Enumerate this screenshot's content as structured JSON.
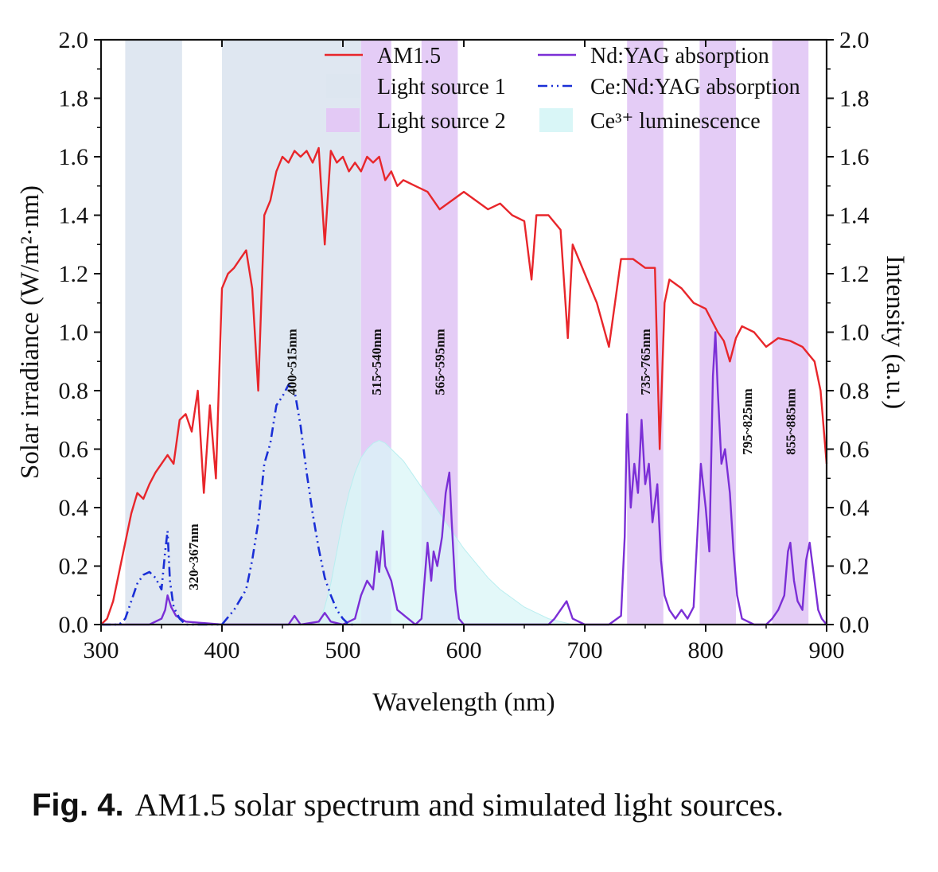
{
  "chart_data": {
    "type": "line",
    "title": "",
    "xlabel": "Wavelength (nm)",
    "ylabel": "Solar irradiance (W/m²·nm)",
    "y2label": "Intensity (a.u.)",
    "xlim": [
      300,
      900
    ],
    "ylim": [
      0,
      2.0
    ],
    "y2lim": [
      0,
      2.0
    ],
    "xticks": [
      "300",
      "400",
      "500",
      "600",
      "700",
      "800",
      "900"
    ],
    "yticks": [
      "0.0",
      "0.2",
      "0.4",
      "0.6",
      "0.8",
      "1.0",
      "1.2",
      "1.4",
      "1.6",
      "1.8",
      "2.0"
    ],
    "grid": false,
    "legend_position": "top",
    "legend": [
      {
        "label": "AM1.5",
        "kind": "line",
        "color": "#e8262b"
      },
      {
        "label": "Nd:YAG absorption",
        "kind": "line",
        "color": "#7b2fd6"
      },
      {
        "label": "Light source 1",
        "kind": "patch",
        "color": "#dde6f0"
      },
      {
        "label": "Ce:Nd:YAG absorption",
        "kind": "dashdot",
        "color": "#1a2fd6"
      },
      {
        "label": "Light source 2",
        "kind": "patch",
        "color": "#e3c9f5"
      },
      {
        "label": "Ce³⁺ luminescence",
        "kind": "patch",
        "color": "#d9f6f7"
      }
    ],
    "bands": [
      {
        "range": [
          320,
          367
        ],
        "label": "320~367nm",
        "source": "Light source 1"
      },
      {
        "range": [
          400,
          515
        ],
        "label": "400~515nm",
        "source": "Light source 1"
      },
      {
        "range": [
          515,
          540
        ],
        "label": "515~540nm",
        "source": "Light source 2"
      },
      {
        "range": [
          565,
          595
        ],
        "label": "565~595nm",
        "source": "Light source 2"
      },
      {
        "range": [
          735,
          765
        ],
        "label": "735~765nm",
        "source": "Light source 2"
      },
      {
        "range": [
          795,
          825
        ],
        "label": "795~825nm",
        "source": "Light source 2"
      },
      {
        "range": [
          855,
          885
        ],
        "label": "855~885nm",
        "source": "Light source 2"
      }
    ],
    "series": [
      {
        "name": "AM1.5",
        "color": "#e8262b",
        "x": [
          300,
          305,
          310,
          315,
          320,
          325,
          330,
          335,
          340,
          345,
          350,
          355,
          360,
          365,
          370,
          375,
          380,
          385,
          390,
          395,
          400,
          405,
          410,
          415,
          420,
          425,
          430,
          435,
          440,
          445,
          450,
          455,
          460,
          465,
          470,
          475,
          480,
          485,
          490,
          495,
          500,
          505,
          510,
          515,
          520,
          525,
          530,
          535,
          540,
          545,
          550,
          560,
          570,
          580,
          590,
          600,
          610,
          620,
          630,
          640,
          650,
          656,
          660,
          670,
          680,
          686,
          690,
          700,
          710,
          720,
          725,
          730,
          740,
          750,
          758,
          762,
          766,
          770,
          780,
          790,
          800,
          810,
          815,
          820,
          825,
          830,
          840,
          850,
          860,
          870,
          880,
          890,
          895,
          900
        ],
        "y": [
          0.0,
          0.02,
          0.08,
          0.18,
          0.28,
          0.38,
          0.45,
          0.43,
          0.48,
          0.52,
          0.55,
          0.58,
          0.55,
          0.7,
          0.72,
          0.66,
          0.8,
          0.45,
          0.75,
          0.5,
          1.15,
          1.2,
          1.22,
          1.25,
          1.28,
          1.15,
          0.8,
          1.4,
          1.45,
          1.55,
          1.6,
          1.58,
          1.62,
          1.6,
          1.62,
          1.58,
          1.63,
          1.3,
          1.62,
          1.58,
          1.6,
          1.55,
          1.58,
          1.55,
          1.6,
          1.58,
          1.6,
          1.52,
          1.55,
          1.5,
          1.52,
          1.5,
          1.48,
          1.42,
          1.45,
          1.48,
          1.45,
          1.42,
          1.44,
          1.4,
          1.38,
          1.18,
          1.4,
          1.4,
          1.35,
          0.98,
          1.3,
          1.2,
          1.1,
          0.95,
          1.1,
          1.25,
          1.25,
          1.22,
          1.22,
          0.6,
          1.1,
          1.18,
          1.15,
          1.1,
          1.08,
          1.0,
          0.97,
          0.9,
          0.98,
          1.02,
          1.0,
          0.95,
          0.98,
          0.97,
          0.95,
          0.9,
          0.8,
          0.55
        ]
      },
      {
        "name": "Nd:YAG absorption",
        "color": "#7b2fd6",
        "x": [
          300,
          340,
          350,
          353,
          355,
          358,
          362,
          370,
          400,
          455,
          460,
          465,
          480,
          485,
          490,
          500,
          510,
          515,
          520,
          525,
          528,
          530,
          533,
          535,
          540,
          545,
          560,
          565,
          570,
          573,
          575,
          578,
          582,
          585,
          588,
          590,
          593,
          596,
          600,
          620,
          640,
          660,
          670,
          675,
          680,
          685,
          690,
          700,
          720,
          730,
          733,
          735,
          738,
          741,
          744,
          747,
          750,
          753,
          756,
          760,
          763,
          766,
          770,
          775,
          780,
          785,
          790,
          793,
          796,
          800,
          803,
          806,
          808,
          810,
          813,
          816,
          820,
          823,
          826,
          830,
          840,
          850,
          855,
          860,
          865,
          868,
          870,
          873,
          876,
          880,
          883,
          886,
          890,
          893,
          896,
          900
        ],
        "y": [
          0.0,
          0.0,
          0.02,
          0.05,
          0.1,
          0.06,
          0.03,
          0.01,
          0.0,
          0.0,
          0.03,
          0.0,
          0.01,
          0.04,
          0.01,
          0.0,
          0.02,
          0.1,
          0.15,
          0.12,
          0.25,
          0.18,
          0.32,
          0.2,
          0.15,
          0.05,
          0.0,
          0.02,
          0.28,
          0.15,
          0.25,
          0.2,
          0.3,
          0.45,
          0.52,
          0.35,
          0.12,
          0.02,
          0.0,
          0.0,
          0.0,
          0.0,
          0.0,
          0.02,
          0.05,
          0.08,
          0.02,
          0.0,
          0.0,
          0.03,
          0.3,
          0.72,
          0.4,
          0.55,
          0.45,
          0.7,
          0.48,
          0.55,
          0.35,
          0.48,
          0.22,
          0.1,
          0.05,
          0.02,
          0.05,
          0.02,
          0.06,
          0.3,
          0.55,
          0.4,
          0.25,
          0.85,
          1.0,
          0.8,
          0.55,
          0.6,
          0.45,
          0.25,
          0.1,
          0.02,
          0.0,
          0.0,
          0.02,
          0.05,
          0.1,
          0.25,
          0.28,
          0.15,
          0.08,
          0.05,
          0.22,
          0.28,
          0.15,
          0.05,
          0.02,
          0.0
        ]
      },
      {
        "name": "Ce:Nd:YAG absorption",
        "color": "#1a2fd6",
        "x": [
          300,
          315,
          320,
          325,
          330,
          335,
          340,
          345,
          350,
          353,
          355,
          357,
          360,
          365,
          370,
          380,
          390,
          395,
          400,
          410,
          420,
          425,
          430,
          435,
          440,
          445,
          450,
          455,
          460,
          465,
          470,
          475,
          480,
          485,
          490,
          495,
          500,
          505,
          510
        ],
        "y": [
          0.0,
          0.0,
          0.02,
          0.08,
          0.14,
          0.17,
          0.18,
          0.16,
          0.12,
          0.25,
          0.32,
          0.15,
          0.06,
          0.02,
          0.0,
          0.0,
          0.0,
          0.0,
          0.0,
          0.05,
          0.12,
          0.22,
          0.35,
          0.55,
          0.62,
          0.75,
          0.78,
          0.82,
          0.8,
          0.68,
          0.52,
          0.38,
          0.26,
          0.16,
          0.1,
          0.05,
          0.02,
          0.0,
          0.0
        ]
      },
      {
        "name": "Ce³⁺ luminescence",
        "color": "#d9f6f7",
        "x": [
          480,
          485,
          490,
          495,
          500,
          505,
          510,
          515,
          520,
          525,
          530,
          535,
          540,
          545,
          550,
          555,
          560,
          570,
          580,
          590,
          600,
          610,
          620,
          630,
          640,
          650,
          660,
          670,
          680,
          690
        ],
        "y": [
          0.0,
          0.06,
          0.14,
          0.25,
          0.36,
          0.45,
          0.52,
          0.57,
          0.6,
          0.62,
          0.63,
          0.62,
          0.6,
          0.58,
          0.56,
          0.53,
          0.5,
          0.44,
          0.38,
          0.32,
          0.26,
          0.21,
          0.16,
          0.12,
          0.09,
          0.06,
          0.04,
          0.02,
          0.01,
          0.0
        ]
      }
    ]
  },
  "caption": {
    "label": "Fig. 4.",
    "text": "AM1.5 solar spectrum and simulated light sources."
  }
}
